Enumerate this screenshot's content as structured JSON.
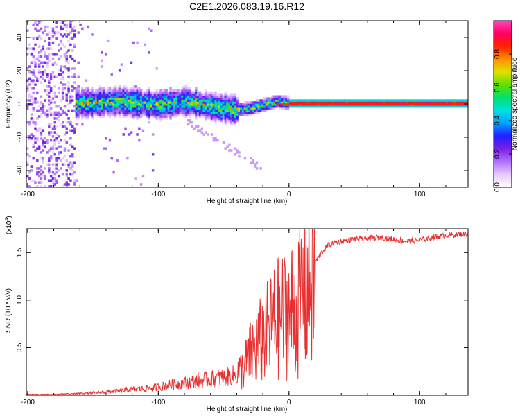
{
  "chart_data": [
    {
      "type": "heatmap",
      "title": "C2E1.2026.083.19.16.R12",
      "xlabel": "Height of straight line (km)",
      "ylabel": "Frequency (Hz)",
      "xlim": [
        -201,
        137
      ],
      "ylim": [
        -50,
        50
      ],
      "xticks": [
        -200,
        -100,
        0,
        100
      ],
      "yticks": [
        -40,
        -20,
        0,
        20,
        40
      ],
      "colorbar": {
        "label": "Normalized spectral amplitude",
        "range": [
          0,
          1
        ],
        "ticks": [
          "0.0",
          "0.2",
          "0.4",
          "0.6",
          "0.8"
        ],
        "tick_values": [
          0.0,
          0.2,
          0.4,
          0.6,
          0.8
        ],
        "colors": [
          "#ffffff",
          "#e8c8ff",
          "#b070ff",
          "#7a20e6",
          "#2020ff",
          "#00a0ff",
          "#00e0e0",
          "#00e070",
          "#60e000",
          "#e0e000",
          "#ff9000",
          "#ff2000",
          "#ff0060",
          "#ff40c0"
        ]
      },
      "ridge_center_hz": [
        {
          "x": -160,
          "y": 0
        },
        {
          "x": -130,
          "y": 1
        },
        {
          "x": -100,
          "y": -1
        },
        {
          "x": -80,
          "y": 1
        },
        {
          "x": -60,
          "y": -2
        },
        {
          "x": -40,
          "y": -4
        },
        {
          "x": -30,
          "y": -3
        },
        {
          "x": -20,
          "y": -1
        },
        {
          "x": -10,
          "y": 1
        },
        {
          "x": 0,
          "y": 0
        },
        {
          "x": 137,
          "y": 0
        }
      ]
    },
    {
      "type": "line",
      "xlabel": "Height of straight line (km)",
      "ylabel": "SNR (10 * v/v)",
      "y_multiplier": "(x10",
      "y_multiplier_exp": "4",
      "xlim": [
        -201,
        137
      ],
      "ylim": [
        0,
        1.75
      ],
      "xticks": [
        -200,
        -100,
        0,
        100
      ],
      "yticks": [
        0.5,
        1.0,
        1.5
      ],
      "ytick_labels": [
        "0.5",
        "1.0",
        "1.5"
      ],
      "series": [
        {
          "name": "SNR",
          "color": "#e83030",
          "x": [
            -201,
            -180,
            -160,
            -150,
            -140,
            -130,
            -120,
            -110,
            -100,
            -90,
            -80,
            -70,
            -60,
            -50,
            -40,
            -35,
            -30,
            -25,
            -20,
            -15,
            -10,
            -5,
            0,
            5,
            10,
            15,
            20,
            25,
            30,
            40,
            50,
            60,
            70,
            80,
            90,
            100,
            110,
            120,
            137
          ],
          "values": [
            0.01,
            0.01,
            0.02,
            0.03,
            0.04,
            0.05,
            0.07,
            0.08,
            0.1,
            0.13,
            0.15,
            0.18,
            0.2,
            0.22,
            0.25,
            0.3,
            0.45,
            0.55,
            0.65,
            0.75,
            0.85,
            0.9,
            0.95,
            1.0,
            1.1,
            1.25,
            1.4,
            1.5,
            1.58,
            1.62,
            1.64,
            1.65,
            1.66,
            1.64,
            1.62,
            1.63,
            1.66,
            1.68,
            1.7
          ]
        }
      ]
    }
  ]
}
